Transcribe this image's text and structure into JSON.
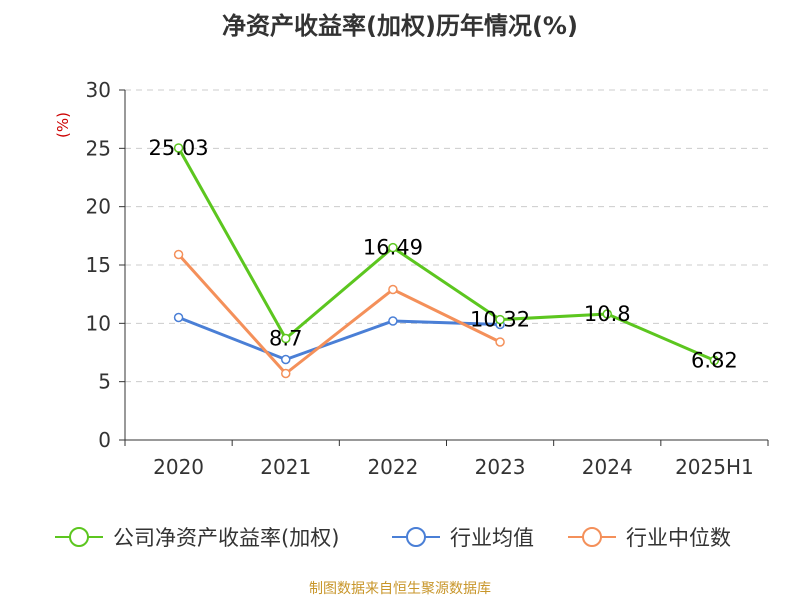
{
  "title": "净资产收益率(加权)历年情况(%)",
  "source": "制图数据来自恒生聚源数据库",
  "colors": {
    "company": "#5cc61f",
    "avg": "#4a7fd6",
    "median": "#f4905a",
    "grid": "#cccccc",
    "axis": "#333333"
  },
  "chart_data": {
    "type": "line",
    "title": "净资产收益率(加权)历年情况(%)",
    "ylabel": "(%)",
    "xlabel": "",
    "categories": [
      "2020",
      "2021",
      "2022",
      "2023",
      "2024",
      "2025H1"
    ],
    "yticks": [
      "0",
      "5",
      "10",
      "15",
      "20",
      "25",
      "30"
    ],
    "ylim": [
      0,
      30
    ],
    "grid": true,
    "legend_position": "bottom",
    "series": [
      {
        "name": "公司净资产收益率(加权)",
        "key": "company",
        "values": [
          25.03,
          8.7,
          16.49,
          10.32,
          10.8,
          6.82
        ],
        "labels": [
          "25.03",
          "8.7",
          "16.49",
          "10.32",
          "10.8",
          "6.82"
        ]
      },
      {
        "name": "行业均值",
        "key": "avg",
        "values": [
          10.5,
          6.9,
          10.2,
          9.9,
          null,
          null
        ]
      },
      {
        "name": "行业中位数",
        "key": "median",
        "values": [
          15.9,
          5.7,
          12.9,
          8.4,
          null,
          null
        ]
      }
    ]
  }
}
